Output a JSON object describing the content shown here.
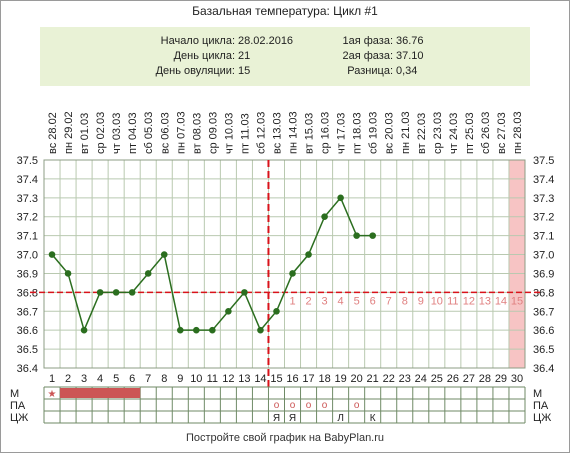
{
  "title": "Базальная температура: Цикл #1",
  "info": {
    "left": [
      {
        "label": "Начало цикла:",
        "value": "28.02.2016"
      },
      {
        "label": "День цикла:",
        "value": "21"
      },
      {
        "label": "День овуляции:",
        "value": "15"
      }
    ],
    "right": [
      {
        "label": "1ая фаза:",
        "value": "36.76"
      },
      {
        "label": "2ая фаза:",
        "value": "37.10"
      },
      {
        "label": "Разница:",
        "value": "0,34"
      }
    ]
  },
  "footer": "Постройте свой график на BabyPlan.ru",
  "colors": {
    "line": "#2b6e1f",
    "point": "#2b6e1f",
    "ovulation_line": "#d9121a",
    "coverline": "#d9121a",
    "phase_numbers": "#e08080",
    "menstruation": "#cc5555",
    "highlight_day": "#f7c4c4",
    "grid": "#b9c9b0"
  },
  "chart_data": {
    "type": "line",
    "days": [
      "1",
      "2",
      "3",
      "4",
      "5",
      "6",
      "7",
      "8",
      "9",
      "10",
      "11",
      "12",
      "13",
      "14",
      "15",
      "16",
      "17",
      "18",
      "19",
      "20",
      "21",
      "22",
      "23",
      "24",
      "25",
      "26",
      "27",
      "28",
      "29",
      "30"
    ],
    "weekdays": [
      "вс",
      "пн",
      "вт",
      "ср",
      "чт",
      "пт",
      "сб",
      "вс",
      "пн",
      "вт",
      "ср",
      "чт",
      "пт",
      "сб",
      "вс",
      "пн",
      "вт",
      "ср",
      "чт",
      "пт",
      "сб",
      "вс",
      "пн",
      "вт",
      "ср",
      "чт",
      "пт",
      "сб",
      "вс",
      "пн"
    ],
    "dates": [
      "28.02",
      "29.02",
      "01.03",
      "02.03",
      "03.03",
      "04.03",
      "05.03",
      "06.03",
      "07.03",
      "08.03",
      "09.03",
      "10.03",
      "11.03",
      "12.03",
      "13.03",
      "14.03",
      "15.03",
      "16.03",
      "17.03",
      "18.03",
      "19.03",
      "20.03",
      "21.03",
      "22.03",
      "23.03",
      "24.03",
      "25.03",
      "26.03",
      "27.03",
      "28.03"
    ],
    "temperatures": [
      37.0,
      36.9,
      36.6,
      36.8,
      36.8,
      36.8,
      36.9,
      37.0,
      36.6,
      36.6,
      36.6,
      36.7,
      36.8,
      36.6,
      36.7,
      36.9,
      37.0,
      37.2,
      37.3,
      37.1,
      37.1
    ],
    "ylim": [
      36.4,
      37.5
    ],
    "yticks": [
      "36.4",
      "36.5",
      "36.6",
      "36.7",
      "36.8",
      "36.9",
      "37.0",
      "37.1",
      "37.2",
      "37.3",
      "37.4",
      "37.5"
    ],
    "coverline": 36.8,
    "ovulation_day": 15,
    "highlight_day": 30,
    "phase_numbers": [
      "1",
      "2",
      "3",
      "4",
      "5",
      "6",
      "7",
      "8",
      "9",
      "10",
      "11",
      "12",
      "13",
      "14",
      "15"
    ],
    "row_labels": [
      "М",
      "ПА",
      "ЦЖ"
    ],
    "star_day": 1,
    "menstruation_days": [
      2,
      3,
      4,
      5,
      6
    ],
    "pa_marks": [
      {
        "day": 15,
        "text": "о"
      },
      {
        "day": 16,
        "text": "о"
      },
      {
        "day": 17,
        "text": "о"
      },
      {
        "day": 18,
        "text": "о"
      },
      {
        "day": 20,
        "text": "о"
      }
    ],
    "cz_marks": [
      {
        "day": 15,
        "text": "Я"
      },
      {
        "day": 16,
        "text": "Я"
      },
      {
        "day": 19,
        "text": "Л"
      },
      {
        "day": 21,
        "text": "К"
      }
    ]
  }
}
